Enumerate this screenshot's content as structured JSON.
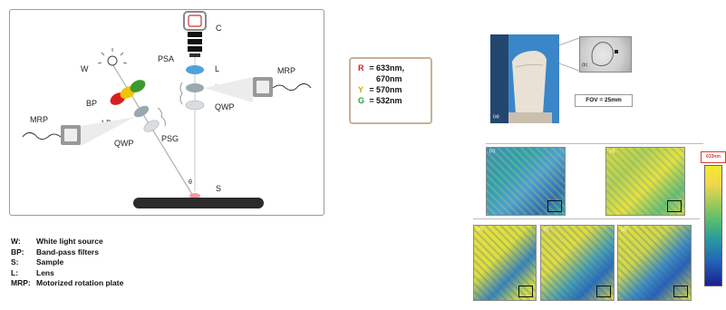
{
  "setup": {
    "labels": {
      "c": "C",
      "w": "W",
      "bp": "BP",
      "psa": "PSA",
      "l": "L",
      "lp_right": "LP",
      "mrp_right": "MRP",
      "qwp_right": "QWP",
      "mrp_left": "MRP",
      "lp_left": "LP",
      "qwp_left": "QWP",
      "psg": "PSG",
      "theta": "θ",
      "s": "S"
    }
  },
  "legend": [
    {
      "key": "W:",
      "text": "White light source"
    },
    {
      "key": "BP:",
      "text": "Band-pass filters"
    },
    {
      "key": "S:",
      "text": "Sample"
    },
    {
      "key": "L:",
      "text": "Lens"
    },
    {
      "key": "MRP:",
      "text": "Motorized rotation plate"
    }
  ],
  "filters": [
    {
      "sym": "R",
      "text": "633nm,",
      "color": "#d62020"
    },
    {
      "sym": "",
      "text": "670nm",
      "color": "#111111"
    },
    {
      "sym": "Y",
      "text": "570nm",
      "color": "#d4a900"
    },
    {
      "sym": "G",
      "text": "532nm",
      "color": "#2a9a3a"
    }
  ],
  "photos": {
    "tag_a": "(a)",
    "tag_b": "(b)",
    "fov": "FOV = 25mm"
  },
  "maps": [
    {
      "tag": "(c)"
    },
    {
      "tag": "(d)"
    },
    {
      "tag": "(e)"
    },
    {
      "tag": "(f)"
    },
    {
      "tag": "(g)"
    }
  ],
  "colorbar": {
    "label": "633nm"
  },
  "colors": {
    "red": "#d62020",
    "yellow": "#f0c400",
    "green": "#3a9a2e",
    "blue_lens": "#4fa3d9",
    "grey_lens": "#9aa8b0",
    "sample": "#2b2b2b"
  }
}
